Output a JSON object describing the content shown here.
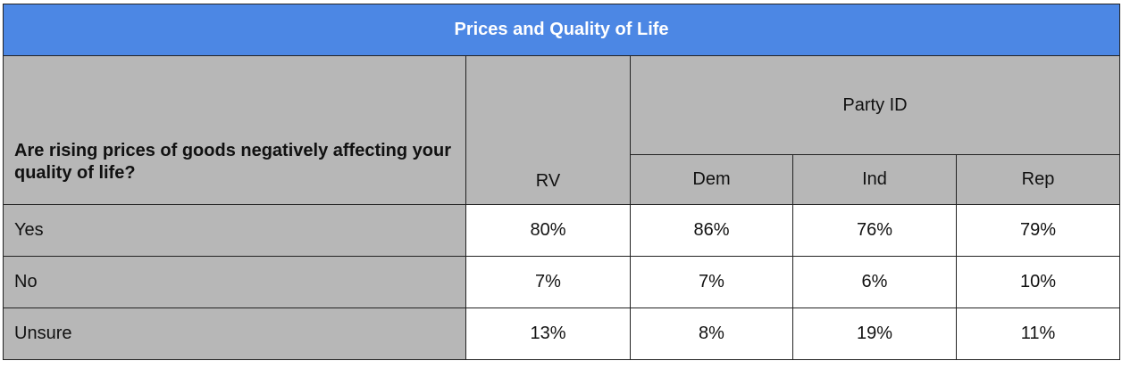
{
  "table": {
    "title": "Prices and Quality of Life",
    "question": "Are rising prices of goods negatively affecting your quality of life?",
    "rv_label": "RV",
    "group_label": "Party ID",
    "columns": [
      "Dem",
      "Ind",
      "Rep"
    ],
    "rows": [
      {
        "label": "Yes",
        "rv": "80%",
        "dem": "86%",
        "ind": "76%",
        "rep": "79%"
      },
      {
        "label": "No",
        "rv": "7%",
        "dem": "7%",
        "ind": "6%",
        "rep": "10%"
      },
      {
        "label": "Unsure",
        "rv": "13%",
        "dem": "8%",
        "ind": "19%",
        "rep": "11%"
      }
    ],
    "colors": {
      "title_bg": "#4c87e4",
      "header_bg": "#b7b7b7"
    }
  }
}
